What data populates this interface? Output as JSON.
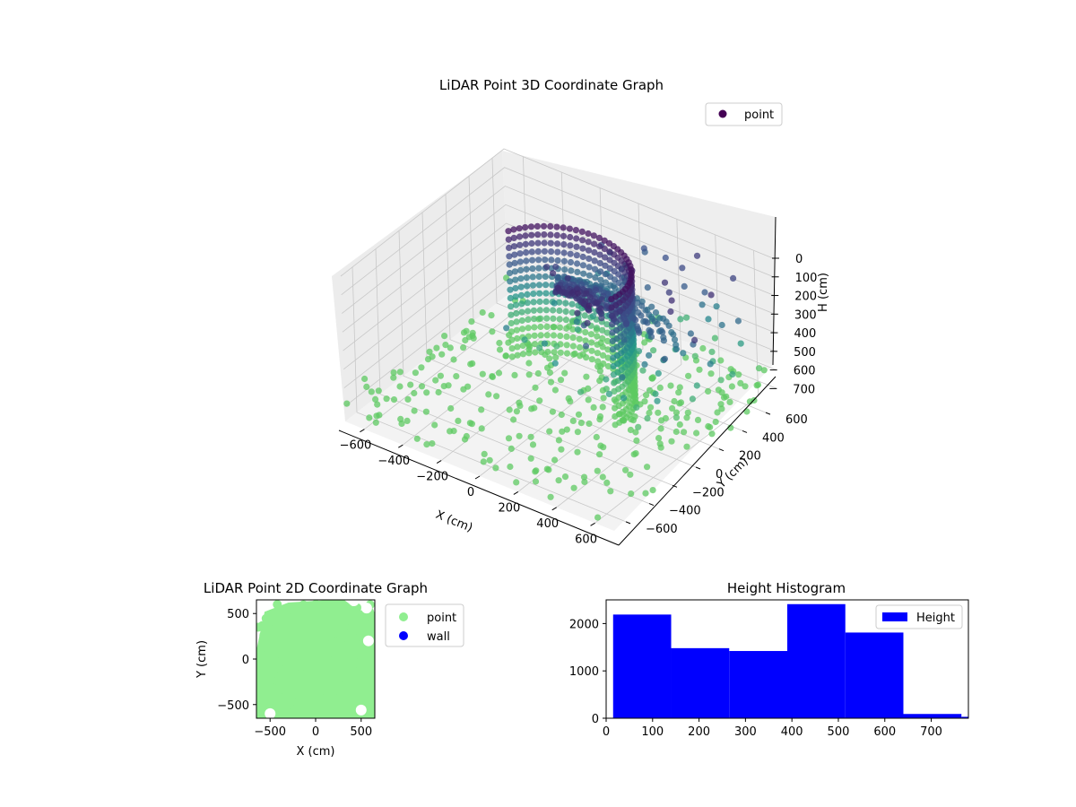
{
  "colors": {
    "viridis_dark": "#440154",
    "viridis_mid": "#3b528b",
    "viridis_teal": "#21908d",
    "viridis_green": "#5dc963",
    "point_2d": "#90ee90",
    "wall_2d": "#0000ff",
    "hist_bar": "#0000ff"
  },
  "chart_data": [
    {
      "type": "scatter",
      "projection": "3d",
      "title": "LiDAR Point 3D Coordinate Graph",
      "xlabel": "X (cm)",
      "ylabel": "Y (cm)",
      "zlabel": "H (cm)",
      "xticks": [
        "−600",
        "−400",
        "−200",
        "0",
        "200",
        "400",
        "600"
      ],
      "yticks": [
        "−600",
        "−400",
        "−200",
        "0",
        "200",
        "400",
        "600"
      ],
      "zticks": [
        "0",
        "100",
        "200",
        "300",
        "400",
        "500",
        "600",
        "700"
      ],
      "xlim": [
        -700,
        700
      ],
      "ylim": [
        -700,
        700
      ],
      "zlim": [
        0,
        780
      ],
      "z_inverted": true,
      "colormap": "viridis",
      "grid": true,
      "legend": {
        "placement": "top-right",
        "entries": [
          {
            "name": "point",
            "color": "#440154"
          }
        ]
      }
    },
    {
      "type": "scatter",
      "title": "LiDAR Point 2D Coordinate Graph",
      "xlabel": "X (cm)",
      "ylabel": "Y (cm)",
      "xticks": [
        "−500",
        "0",
        "500"
      ],
      "yticks": [
        "500",
        "0",
        "−500"
      ],
      "xlim": [
        -650,
        650
      ],
      "ylim": [
        -650,
        650
      ],
      "legend": {
        "placement": "outside-right",
        "entries": [
          {
            "name": "point",
            "color": "#90ee90"
          },
          {
            "name": "wall",
            "color": "#0000ff"
          }
        ]
      }
    },
    {
      "type": "bar",
      "histogram": true,
      "title": "Height Histogram",
      "xlabel": "",
      "ylabel": "",
      "bins": [
        {
          "start": 15,
          "end": 140,
          "count": 2190
        },
        {
          "start": 140,
          "end": 265,
          "count": 1480
        },
        {
          "start": 265,
          "end": 390,
          "count": 1420
        },
        {
          "start": 390,
          "end": 515,
          "count": 2410
        },
        {
          "start": 515,
          "end": 640,
          "count": 1810
        },
        {
          "start": 640,
          "end": 765,
          "count": 90
        },
        {
          "start": 765,
          "end": 790,
          "count": 30
        }
      ],
      "xticks": [
        "0",
        "100",
        "200",
        "300",
        "400",
        "500",
        "600",
        "700"
      ],
      "yticks": [
        "0",
        "1000",
        "2000"
      ],
      "xlim": [
        0,
        780
      ],
      "ylim": [
        0,
        2500
      ],
      "legend": {
        "placement": "top-right",
        "entries": [
          {
            "name": "Height",
            "color": "#0000ff"
          }
        ]
      }
    }
  ]
}
